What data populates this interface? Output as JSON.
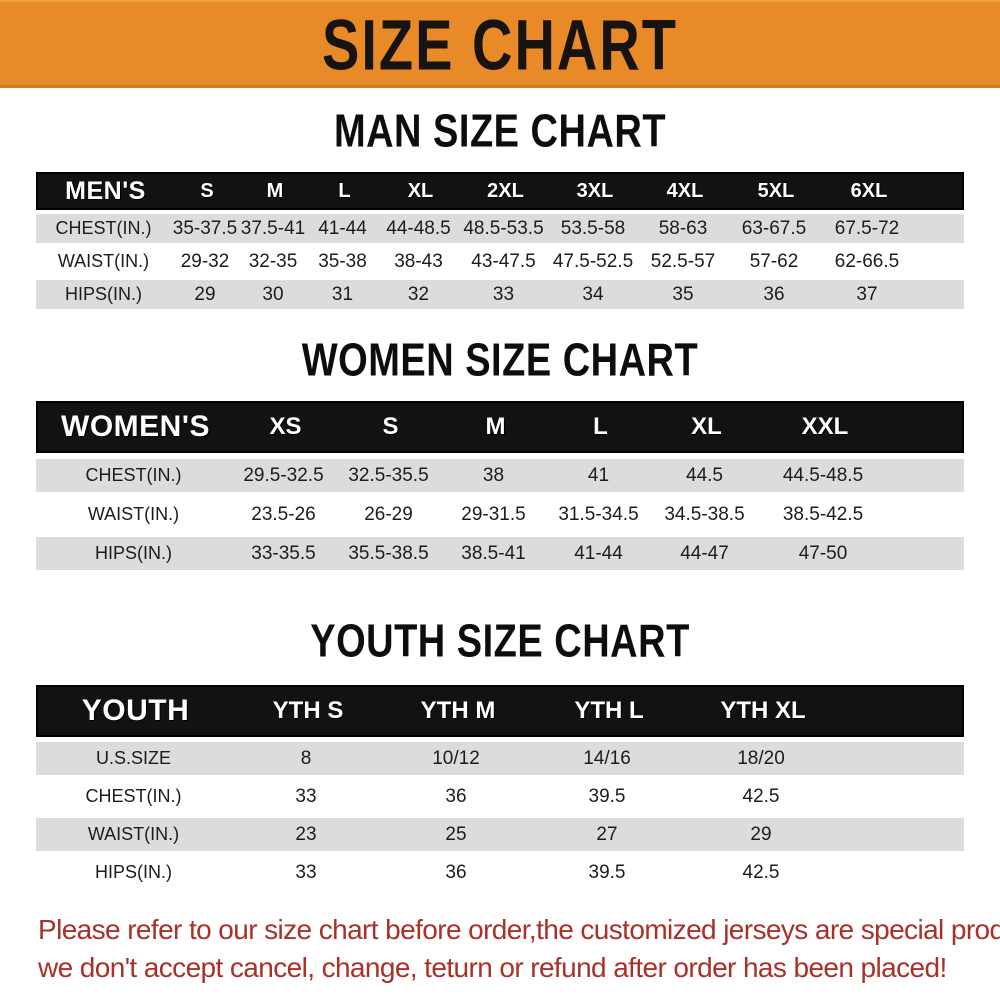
{
  "banner": {
    "title": "SIZE CHART"
  },
  "colors": {
    "banner_bg": "#E98A29",
    "table_header_bg": "#141111",
    "row_alt_bg": "#DCDCDC",
    "note_text": "#A93128"
  },
  "man": {
    "section_title": "MAN SIZE CHART",
    "corner_label": "MEN'S",
    "sizes": [
      "S",
      "M",
      "L",
      "XL",
      "2XL",
      "3XL",
      "4XL",
      "5XL",
      "6XL"
    ],
    "rows": [
      {
        "label": "CHEST(IN.)",
        "values": [
          "35-37.5",
          "37.5-41",
          "41-44",
          "44-48.5",
          "48.5-53.5",
          "53.5-58",
          "58-63",
          "63-67.5",
          "67.5-72"
        ]
      },
      {
        "label": "WAIST(IN.)",
        "values": [
          "29-32",
          "32-35",
          "35-38",
          "38-43",
          "43-47.5",
          "47.5-52.5",
          "52.5-57",
          "57-62",
          "62-66.5"
        ]
      },
      {
        "label": "HIPS(IN.)",
        "values": [
          "29",
          "30",
          "31",
          "32",
          "33",
          "34",
          "35",
          "36",
          "37"
        ]
      }
    ]
  },
  "women": {
    "section_title": "WOMEN SIZE CHART",
    "corner_label": "WOMEN'S",
    "sizes": [
      "XS",
      "S",
      "M",
      "L",
      "XL",
      "XXL"
    ],
    "rows": [
      {
        "label": "CHEST(IN.)",
        "values": [
          "29.5-32.5",
          "32.5-35.5",
          "38",
          "41",
          "44.5",
          "44.5-48.5"
        ]
      },
      {
        "label": "WAIST(IN.)",
        "values": [
          "23.5-26",
          "26-29",
          "29-31.5",
          "31.5-34.5",
          "34.5-38.5",
          "38.5-42.5"
        ]
      },
      {
        "label": "HIPS(IN.)",
        "values": [
          "33-35.5",
          "35.5-38.5",
          "38.5-41",
          "41-44",
          "44-47",
          "47-50"
        ]
      }
    ]
  },
  "youth": {
    "section_title": "YOUTH SIZE CHART",
    "corner_label": "YOUTH",
    "sizes": [
      "YTH S",
      "YTH M",
      "YTH L",
      "YTH XL"
    ],
    "rows": [
      {
        "label": "U.S.SIZE",
        "values": [
          "8",
          "10/12",
          "14/16",
          "18/20"
        ]
      },
      {
        "label": "CHEST(IN.)",
        "values": [
          "33",
          "36",
          "39.5",
          "42.5"
        ]
      },
      {
        "label": "WAIST(IN.)",
        "values": [
          "23",
          "25",
          "27",
          "29"
        ]
      },
      {
        "label": "HIPS(IN.)",
        "values": [
          "33",
          "36",
          "39.5",
          "42.5"
        ]
      }
    ]
  },
  "note": {
    "line1": "Please refer to our size chart before order,the customized jerseys are special products,",
    "line2": "we don't accept cancel, change, teturn or refund after order has been placed!"
  }
}
